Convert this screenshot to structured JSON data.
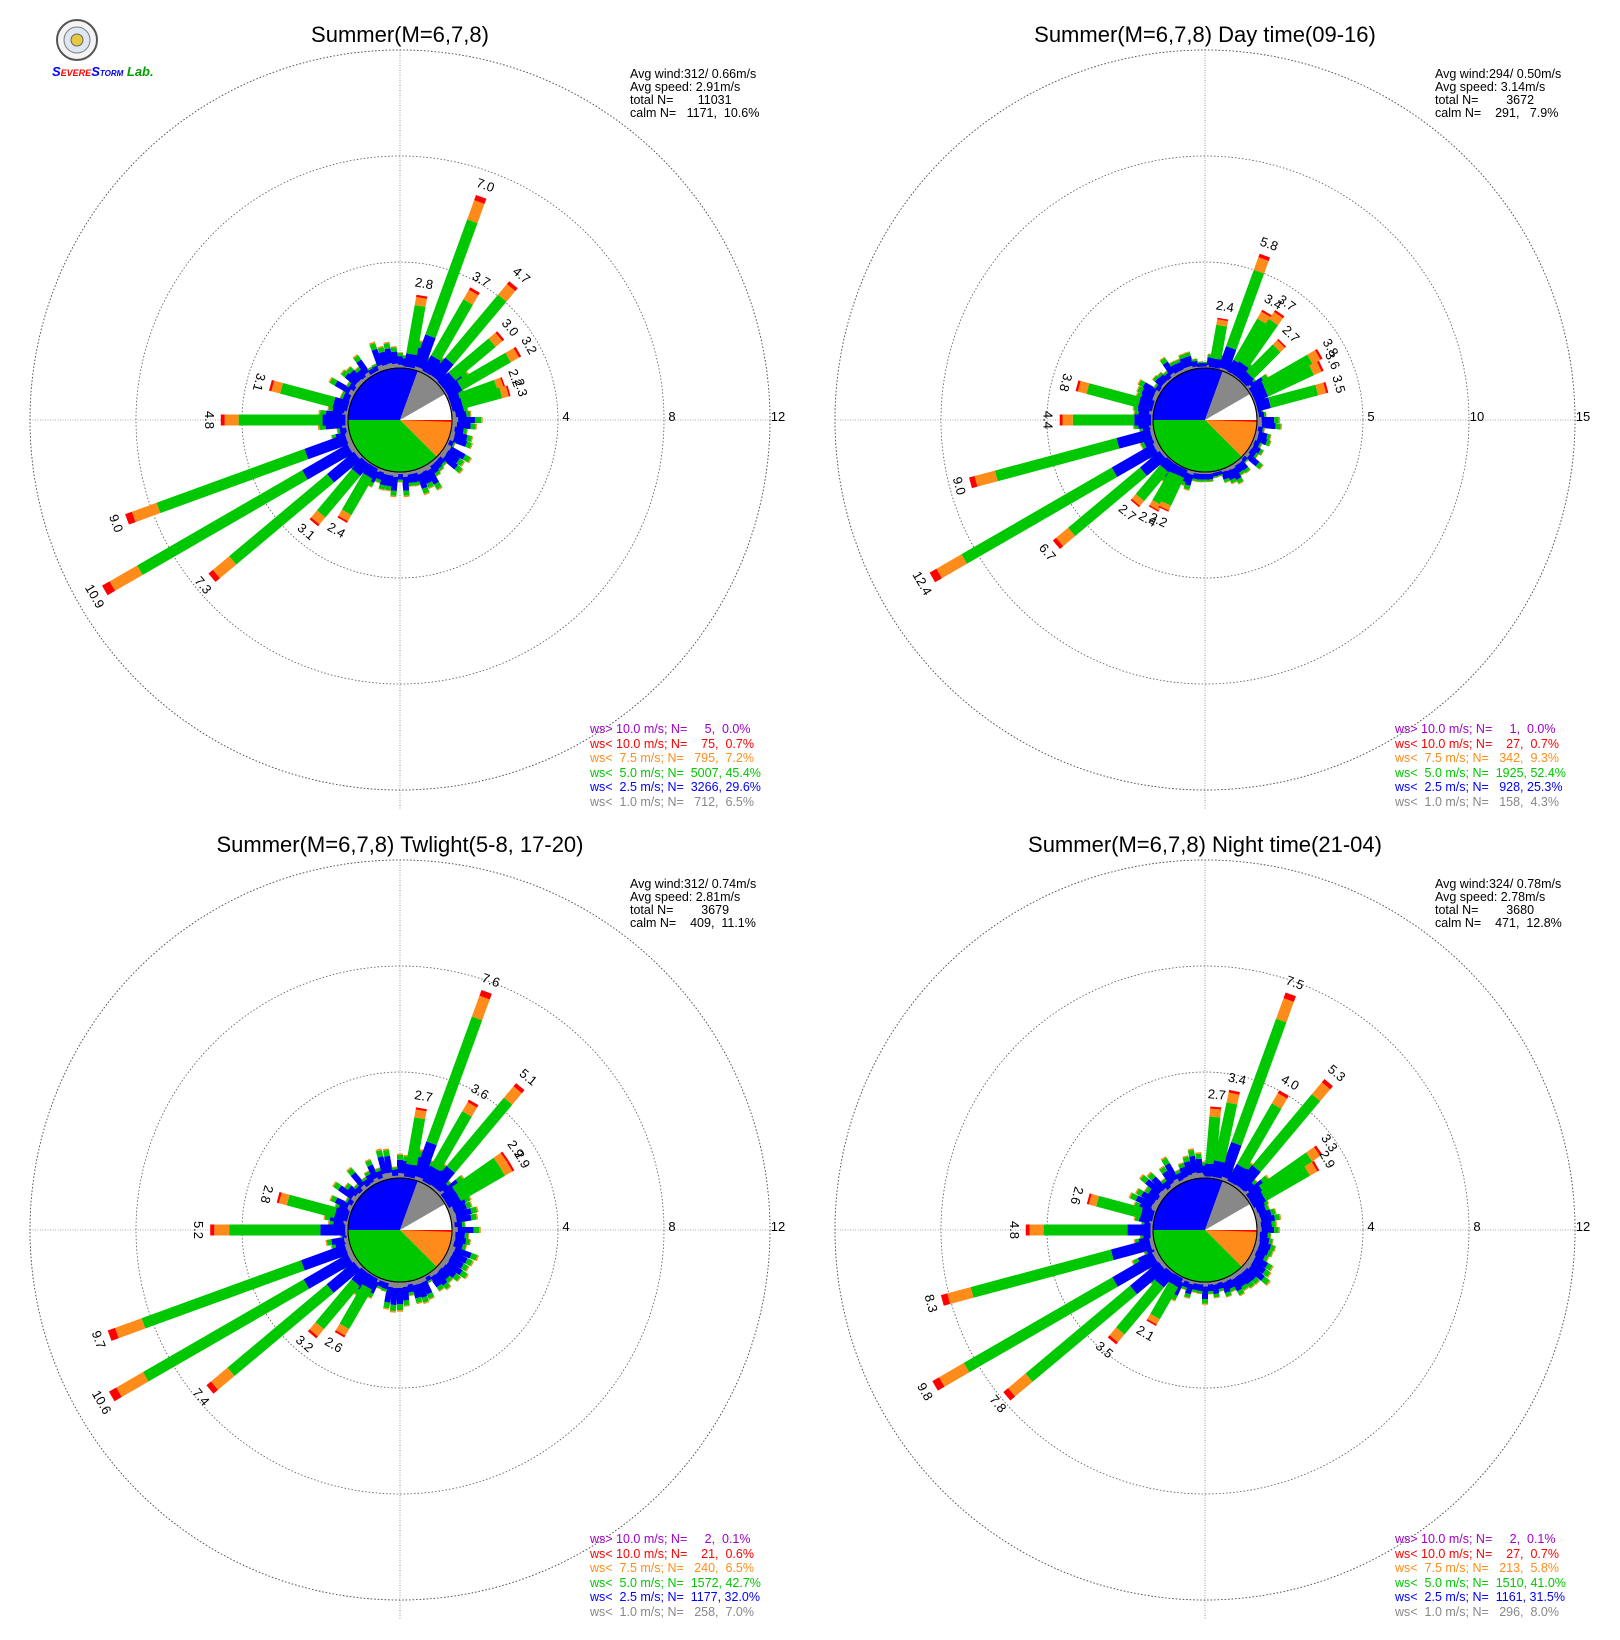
{
  "logo": {
    "text_parts": [
      "S",
      "EVERE",
      "S",
      "TORM",
      " Lab."
    ]
  },
  "colors": {
    "purple": "#a000c8",
    "red": "#ff0000",
    "orange": "#ff8c1a",
    "green": "#00c800",
    "blue": "#0000ff",
    "gray": "#888888"
  },
  "chart_data": [
    {
      "type": "windrose",
      "title": "Summer(M=6,7,8)",
      "stats": [
        "Avg wind:312/ 0.66m/s",
        "Avg speed: 2.91m/s",
        "total N=       11031",
        "calm N=   1171,  10.6%"
      ],
      "rings": [
        "4",
        "8",
        "12"
      ],
      "rmax": 12,
      "labeled_bars": [
        {
          "dir": 20,
          "value": 7.0,
          "label": "7.0"
        },
        {
          "dir": 10,
          "value": 2.8,
          "label": "2.8"
        },
        {
          "dir": 30,
          "value": 3.7,
          "label": "3.7"
        },
        {
          "dir": 40,
          "value": 4.7,
          "label": "4.7"
        },
        {
          "dir": 50,
          "value": 3.0,
          "label": "3.0"
        },
        {
          "dir": 60,
          "value": 3.2,
          "label": "3.2"
        },
        {
          "dir": 70,
          "value": 2.2,
          "label": "2.2"
        },
        {
          "dir": 75,
          "value": 2.3,
          "label": "2.3"
        },
        {
          "dir": 285,
          "value": 3.1,
          "label": "3.1"
        },
        {
          "dir": 270,
          "value": 4.8,
          "label": "4.8"
        },
        {
          "dir": 250,
          "value": 9.0,
          "label": "9.0"
        },
        {
          "dir": 240,
          "value": 10.9,
          "label": "10.9"
        },
        {
          "dir": 230,
          "value": 7.3,
          "label": "7.3"
        },
        {
          "dir": 220,
          "value": 3.1,
          "label": "3.1"
        },
        {
          "dir": 210,
          "value": 2.4,
          "label": "2.4"
        }
      ],
      "legend": [
        "ws> 10.0 m/s; N=     5,  0.0%",
        "ws< 10.0 m/s; N=    75,  0.7%",
        "ws<  7.5 m/s; N=   795,  7.2%",
        "ws<  5.0 m/s; N=  5007, 45.4%",
        "ws<  2.5 m/s; N=  3266, 29.6%",
        "ws<  1.0 m/s; N=   712,  6.5%"
      ]
    },
    {
      "type": "windrose",
      "title": "Summer(M=6,7,8) Day time(09-16)",
      "stats": [
        "Avg wind:294/ 0.50m/s",
        "Avg speed: 3.14m/s",
        "total N=        3672",
        "calm N=    291,   7.9%"
      ],
      "rings": [
        "5",
        "10",
        "15"
      ],
      "rmax": 15,
      "labeled_bars": [
        {
          "dir": 20,
          "value": 5.8,
          "label": "5.8"
        },
        {
          "dir": 10,
          "value": 2.4,
          "label": "2.4"
        },
        {
          "dir": 30,
          "value": 3.4,
          "label": "3.4"
        },
        {
          "dir": 35,
          "value": 3.7,
          "label": "3.7"
        },
        {
          "dir": 45,
          "value": 2.7,
          "label": "2.7"
        },
        {
          "dir": 60,
          "value": 3.8,
          "label": "3.8"
        },
        {
          "dir": 65,
          "value": 3.6,
          "label": "3.6"
        },
        {
          "dir": 75,
          "value": 3.5,
          "label": "3.5"
        },
        {
          "dir": 285,
          "value": 3.8,
          "label": "3.8"
        },
        {
          "dir": 270,
          "value": 4.4,
          "label": "4.4"
        },
        {
          "dir": 255,
          "value": 9.0,
          "label": "9.0"
        },
        {
          "dir": 240,
          "value": 12.4,
          "label": "12.4"
        },
        {
          "dir": 230,
          "value": 6.7,
          "label": "6.7"
        },
        {
          "dir": 220,
          "value": 2.7,
          "label": "2.7"
        },
        {
          "dir": 210,
          "value": 2.4,
          "label": "2.4"
        },
        {
          "dir": 205,
          "value": 2.2,
          "label": "2.2"
        }
      ],
      "legend": [
        "ws> 10.0 m/s; N=     1,  0.0%",
        "ws< 10.0 m/s; N=    27,  0.7%",
        "ws<  7.5 m/s; N=   342,  9.3%",
        "ws<  5.0 m/s; N=  1925, 52.4%",
        "ws<  2.5 m/s; N=   928, 25.3%",
        "ws<  1.0 m/s; N=   158,  4.3%"
      ]
    },
    {
      "type": "windrose",
      "title": "Summer(M=6,7,8) Twlight(5-8, 17-20)",
      "stats": [
        "Avg wind:312/ 0.74m/s",
        "Avg speed: 2.81m/s",
        "total N=        3679",
        "calm N=    409,  11.1%"
      ],
      "rings": [
        "4",
        "8",
        "12"
      ],
      "rmax": 12,
      "labeled_bars": [
        {
          "dir": 20,
          "value": 7.6,
          "label": "7.6"
        },
        {
          "dir": 10,
          "value": 2.7,
          "label": "2.7"
        },
        {
          "dir": 30,
          "value": 3.6,
          "label": "3.6"
        },
        {
          "dir": 40,
          "value": 5.1,
          "label": "5.1"
        },
        {
          "dir": 55,
          "value": 2.9,
          "label": "2.9"
        },
        {
          "dir": 60,
          "value": 2.9,
          "label": "2.9"
        },
        {
          "dir": 285,
          "value": 2.8,
          "label": "2.8"
        },
        {
          "dir": 270,
          "value": 5.2,
          "label": "5.2"
        },
        {
          "dir": 250,
          "value": 9.7,
          "label": "9.7"
        },
        {
          "dir": 240,
          "value": 10.6,
          "label": "10.6"
        },
        {
          "dir": 230,
          "value": 7.4,
          "label": "7.4"
        },
        {
          "dir": 220,
          "value": 3.2,
          "label": "3.2"
        },
        {
          "dir": 210,
          "value": 2.6,
          "label": "2.6"
        }
      ],
      "legend": [
        "ws> 10.0 m/s; N=     2,  0.1%",
        "ws< 10.0 m/s; N=    21,  0.6%",
        "ws<  7.5 m/s; N=   240,  6.5%",
        "ws<  5.0 m/s; N=  1572, 42.7%",
        "ws<  2.5 m/s; N=  1177, 32.0%",
        "ws<  1.0 m/s; N=   258,  7.0%"
      ]
    },
    {
      "type": "windrose",
      "title": "Summer(M=6,7,8) Night time(21-04)",
      "stats": [
        "Avg wind:324/ 0.78m/s",
        "Avg speed: 2.78m/s",
        "total N=        3680",
        "calm N=    471,  12.8%"
      ],
      "rings": [
        "4",
        "8",
        "12"
      ],
      "rmax": 12,
      "labeled_bars": [
        {
          "dir": 20,
          "value": 7.5,
          "label": "7.5"
        },
        {
          "dir": 5,
          "value": 2.7,
          "label": "2.7"
        },
        {
          "dir": 12,
          "value": 3.4,
          "label": "3.4"
        },
        {
          "dir": 30,
          "value": 4.0,
          "label": "4.0"
        },
        {
          "dir": 40,
          "value": 5.3,
          "label": "5.3"
        },
        {
          "dir": 55,
          "value": 3.3,
          "label": "3.3"
        },
        {
          "dir": 60,
          "value": 2.9,
          "label": "2.9"
        },
        {
          "dir": 285,
          "value": 2.6,
          "label": "2.6"
        },
        {
          "dir": 270,
          "value": 4.8,
          "label": "4.8"
        },
        {
          "dir": 255,
          "value": 8.3,
          "label": "8.3"
        },
        {
          "dir": 240,
          "value": 9.8,
          "label": "9.8"
        },
        {
          "dir": 230,
          "value": 7.8,
          "label": "7.8"
        },
        {
          "dir": 220,
          "value": 3.5,
          "label": "3.5"
        },
        {
          "dir": 210,
          "value": 2.1,
          "label": "2.1"
        }
      ],
      "legend": [
        "ws> 10.0 m/s; N=     2,  0.1%",
        "ws< 10.0 m/s; N=    27,  0.7%",
        "ws<  7.5 m/s; N=   213,  5.8%",
        "ws<  5.0 m/s; N=  1510, 41.0%",
        "ws<  2.5 m/s; N=  1161, 31.5%",
        "ws<  1.0 m/s; N=   296,  8.0%"
      ]
    }
  ]
}
